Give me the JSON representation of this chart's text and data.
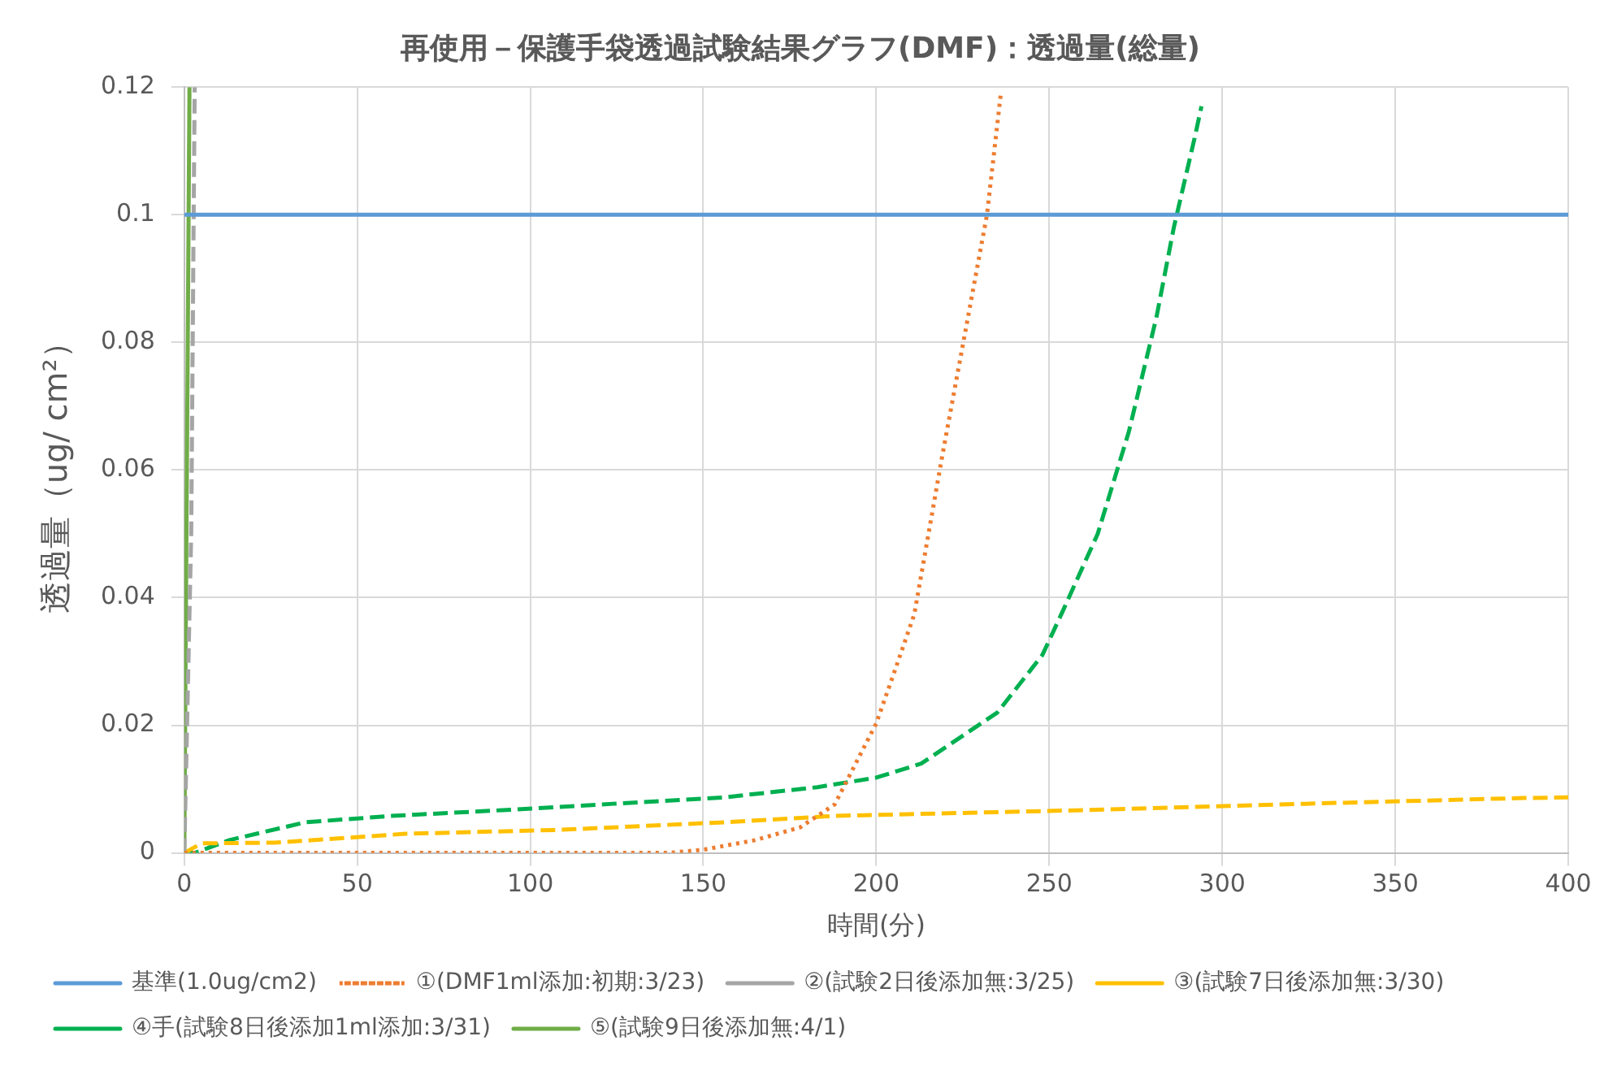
{
  "chart_data": {
    "type": "line",
    "title": "再使用－保護手袋透過試験結果グラフ(DMF)：透過量(総量)",
    "xlabel": "時間(分)",
    "ylabel": "透過量（ug/ cm²）",
    "xlim": [
      0,
      400
    ],
    "xticks": [
      0,
      50,
      100,
      150,
      200,
      250,
      300,
      350,
      400
    ],
    "ylim": [
      0,
      0.12
    ],
    "yticks": [
      0,
      0.02,
      0.04,
      0.06,
      0.08,
      0.1,
      0.12
    ],
    "grid": true,
    "legend": "bottom",
    "marker": "none",
    "series": [
      {
        "name": "基準(1.0ug/cm2)",
        "color": "#5b9bd5",
        "line_style": "solid",
        "x": [
          0,
          400
        ],
        "values": [
          0.1,
          0.1
        ]
      },
      {
        "name": "①(DMF1ml添加:初期:3/23)",
        "color": "#ed7d31",
        "line_style": "dotted",
        "x": [
          0,
          140,
          150,
          165,
          178,
          188,
          200,
          205,
          211,
          219,
          232,
          236
        ],
        "values": [
          0,
          0,
          0.0005,
          0.002,
          0.004,
          0.0076,
          0.0203,
          0.028,
          0.0374,
          0.062,
          0.1,
          0.119
        ]
      },
      {
        "name": "②(試験2日後添加無:3/25)",
        "color": "#a5a5a5",
        "line_style": "dashed",
        "x": [
          0,
          2,
          3
        ],
        "values": [
          0,
          0.05,
          0.12
        ]
      },
      {
        "name": "③(試験7日後添加無:3/30)",
        "color": "#ffc000",
        "line_style": "dashed",
        "x": [
          0,
          5,
          26,
          64,
          108,
          156,
          188,
          260,
          324,
          387,
          400
        ],
        "values": [
          0,
          0.0015,
          0.0016,
          0.003,
          0.0036,
          0.0048,
          0.0058,
          0.0067,
          0.0077,
          0.0086,
          0.0087
        ]
      },
      {
        "name": "④手(試験8日後添加1ml添加:3/31)",
        "color": "#00b050",
        "line_style": "dashed",
        "x": [
          0,
          3,
          13,
          35,
          60,
          92,
          124,
          156,
          183,
          200,
          213,
          235,
          248,
          254,
          264,
          273,
          281,
          286,
          292,
          294
        ],
        "values": [
          0,
          0,
          0.002,
          0.0048,
          0.0058,
          0.0067,
          0.0077,
          0.0087,
          0.0103,
          0.0118,
          0.014,
          0.022,
          0.031,
          0.038,
          0.05,
          0.066,
          0.084,
          0.098,
          0.112,
          0.117
        ]
      },
      {
        "name": "⑤(試験9日後添加無:4/1)",
        "color": "#70ad47",
        "line_style": "solid",
        "x": [
          0,
          1.5
        ],
        "values": [
          0,
          0.12
        ]
      }
    ]
  }
}
